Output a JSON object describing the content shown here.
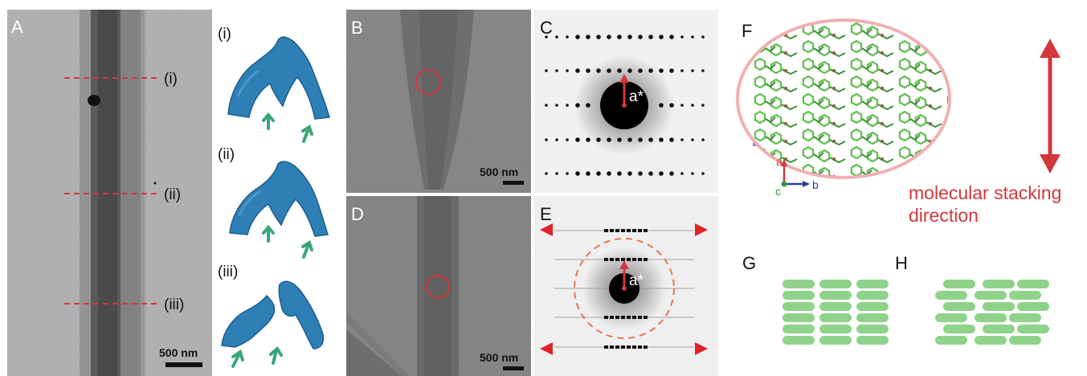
{
  "figure": {
    "panel_a": {
      "label": "A",
      "markers": [
        "(i)",
        "(ii)",
        "(iii)"
      ],
      "scalebar": "500 nm"
    },
    "surfaces": {
      "labels": [
        "(i)",
        "(ii)",
        "(iii)"
      ],
      "color": "#2e7fb6",
      "arrow_color": "#3aa678"
    },
    "panel_b": {
      "label": "B",
      "scalebar": "500 nm"
    },
    "panel_c": {
      "label": "C",
      "axis": "a*"
    },
    "panel_d": {
      "label": "D",
      "scalebar": "500 nm"
    },
    "panel_e": {
      "label": "E",
      "axis": "a*"
    },
    "panel_f": {
      "label": "F",
      "axes": {
        "a": "a",
        "b": "b",
        "c": "c"
      },
      "caption_line1": "molecular stacking",
      "caption_line2": "direction"
    },
    "panel_g": {
      "label": "G"
    },
    "panel_h": {
      "label": "H"
    },
    "colors": {
      "accent_red": "#d2383c",
      "molecule_green": "#5fbf4f",
      "block_green": "#8fd28a",
      "crystal_blue": "#8a8fc9"
    }
  }
}
